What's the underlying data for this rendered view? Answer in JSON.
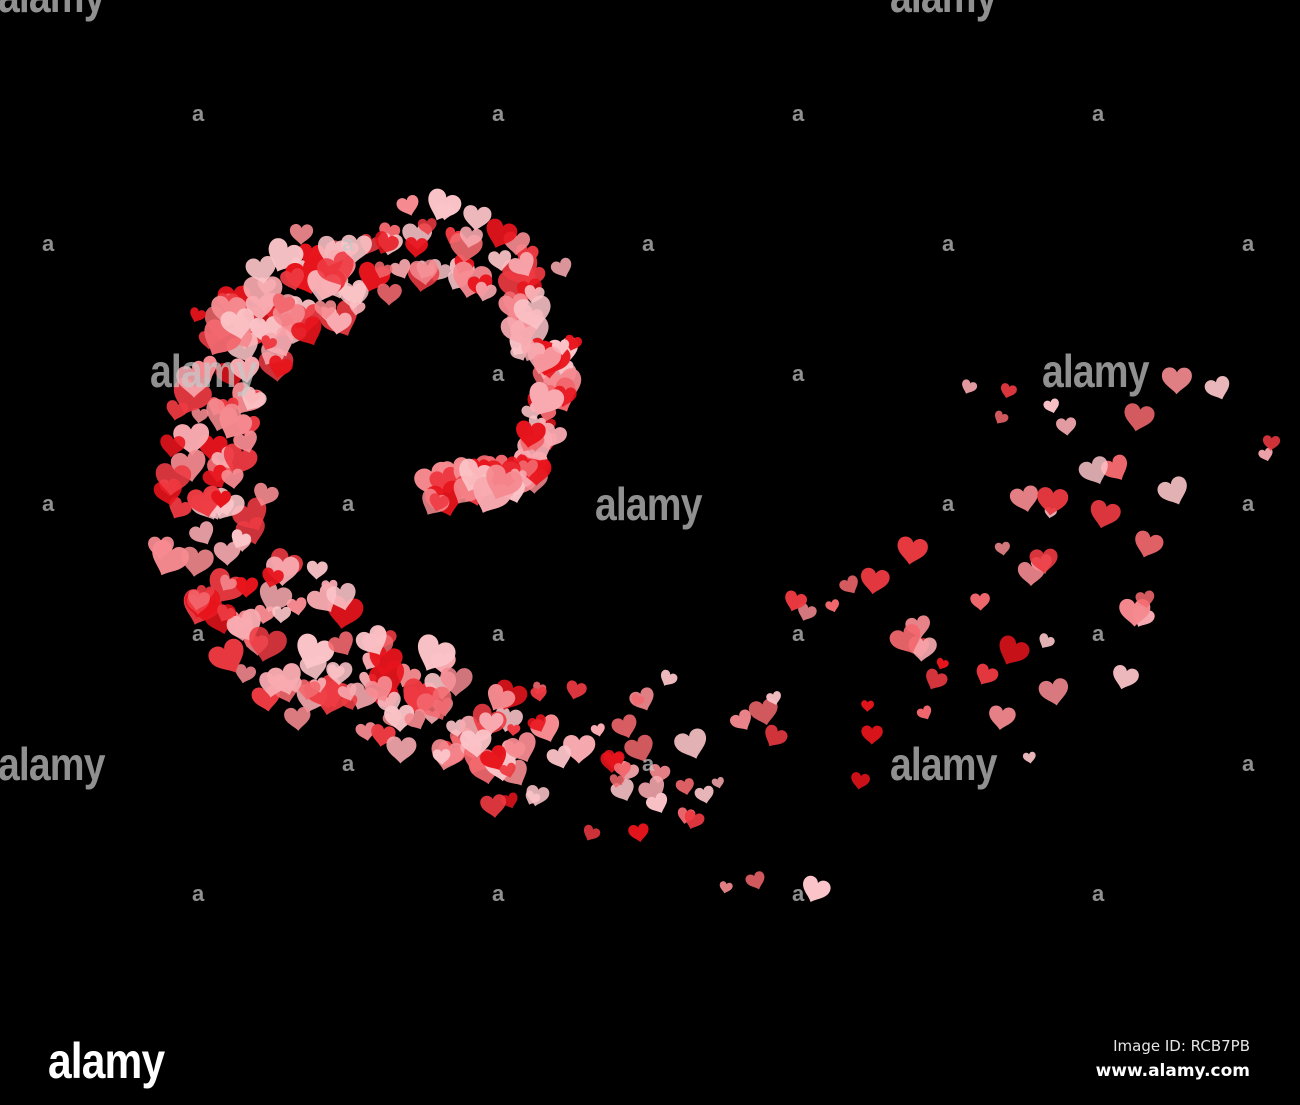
{
  "image": {
    "background": "#000000",
    "subject": "hearts",
    "heart_colors": [
      "#e8141c",
      "#ee3a42",
      "#f2686e",
      "#f58a90",
      "#f8aab0",
      "#fbc4c8"
    ]
  },
  "watermark": {
    "text": "alamy",
    "letter": "a"
  },
  "footer": {
    "logo": "alamy",
    "image_id": "Image ID: RCB7PB",
    "website": "www.alamy.com"
  }
}
